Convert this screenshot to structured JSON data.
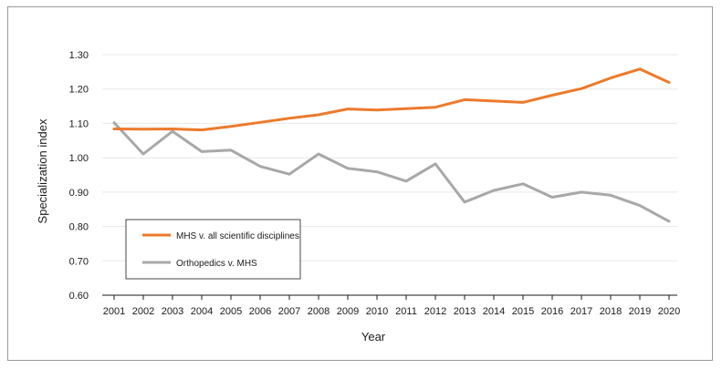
{
  "chart_data": {
    "type": "line",
    "xlabel": "Year",
    "ylabel": "Specialization index",
    "ylim": [
      0.6,
      1.3
    ],
    "yticks": [
      "0.60",
      "0.70",
      "0.80",
      "0.90",
      "1.00",
      "1.10",
      "1.20",
      "1.30"
    ],
    "x": [
      "2001",
      "2002",
      "2003",
      "2004",
      "2005",
      "2006",
      "2007",
      "2008",
      "2009",
      "2010",
      "2011",
      "2012",
      "2013",
      "2014",
      "2015",
      "2016",
      "2017",
      "2018",
      "2019",
      "2020"
    ],
    "grid": "horizontal",
    "legend_position": "bottom-left",
    "series": [
      {
        "name": "MHS v. all scientific disciplines",
        "color": "#ec7a2c",
        "values": [
          1.084,
          1.083,
          1.084,
          1.081,
          1.091,
          1.103,
          1.115,
          1.125,
          1.142,
          1.139,
          1.143,
          1.147,
          1.169,
          1.165,
          1.161,
          1.182,
          1.201,
          1.232,
          1.258,
          1.219
        ]
      },
      {
        "name": "Orthopedics v. MHS",
        "color": "#a8a8a8",
        "values": [
          1.102,
          1.011,
          1.077,
          1.018,
          1.022,
          0.975,
          0.952,
          1.011,
          0.969,
          0.959,
          0.932,
          0.982,
          0.871,
          0.905,
          0.924,
          0.885,
          0.9,
          0.891,
          0.861,
          0.815
        ]
      }
    ]
  }
}
